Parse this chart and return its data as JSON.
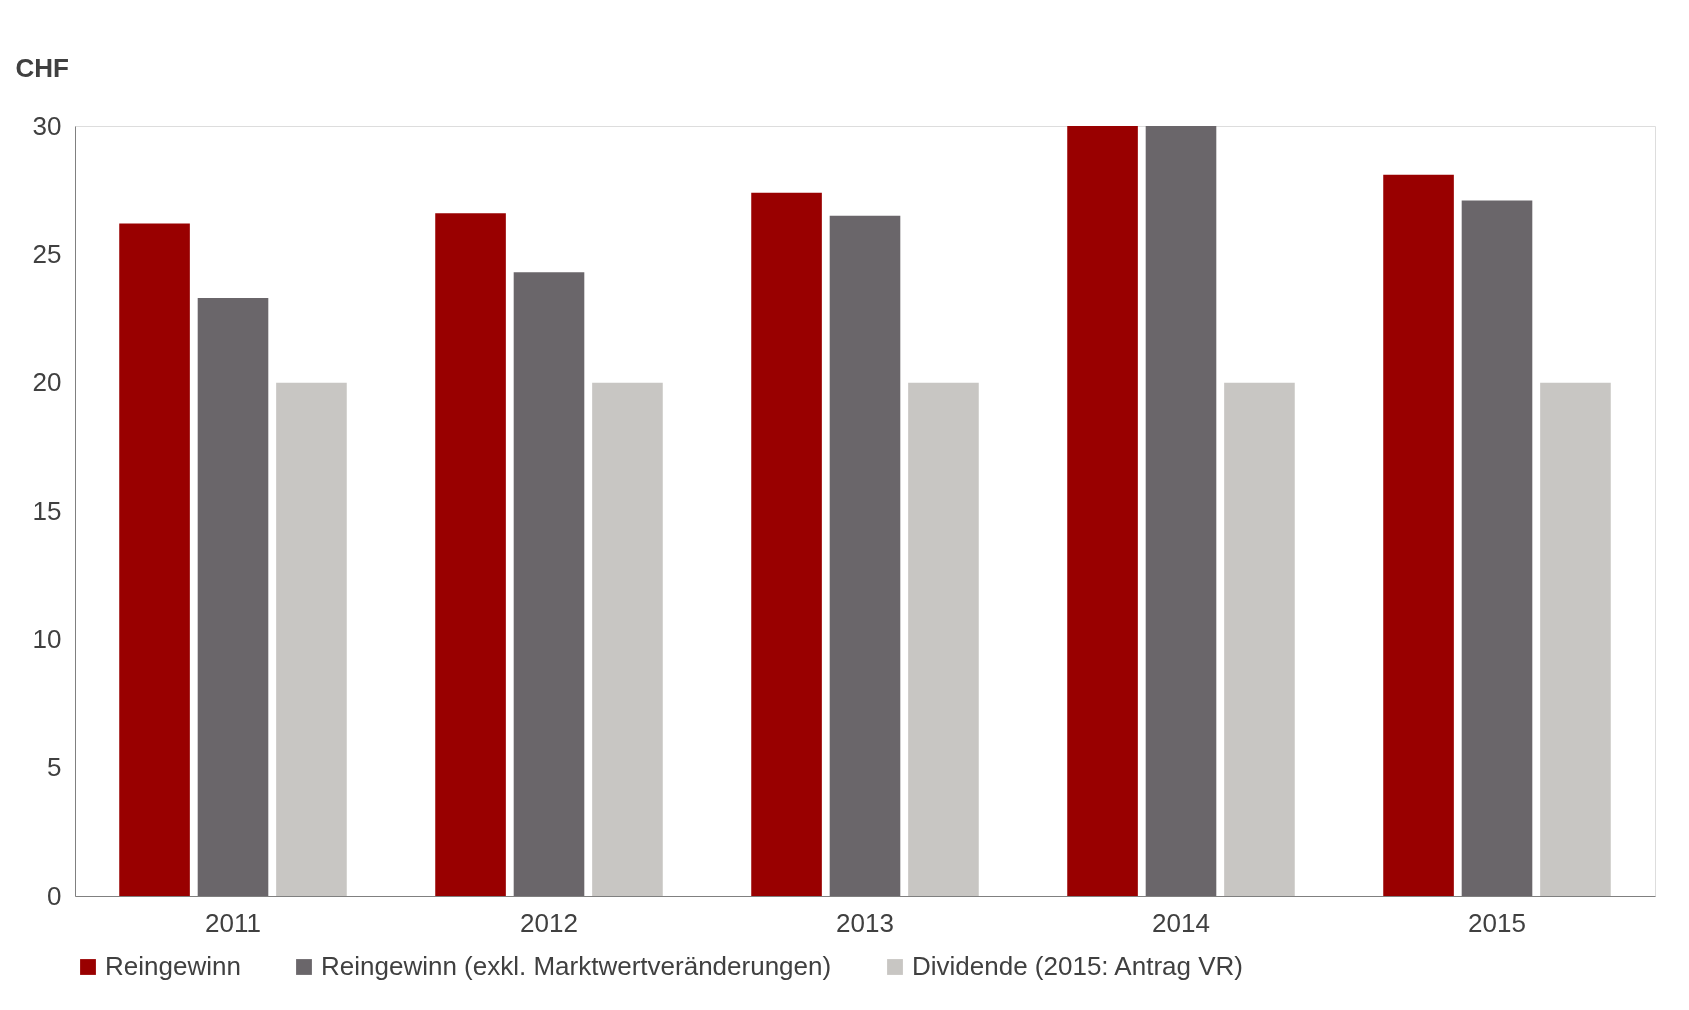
{
  "chart_data": {
    "type": "bar",
    "ylabel": "CHF",
    "categories": [
      "2011",
      "2012",
      "2013",
      "2014",
      "2015"
    ],
    "series": [
      {
        "name": "Reingewinn",
        "color": "#990000",
        "values": [
          26.2,
          26.6,
          27.4,
          30.0,
          28.1
        ]
      },
      {
        "name": "Reingewinn (exkl. Marktwertveränderungen)",
        "color": "#6a666a",
        "values": [
          23.3,
          24.3,
          26.5,
          30.0,
          27.1
        ]
      },
      {
        "name": "Dividende (2015: Antrag VR)",
        "color": "#c8c6c3",
        "values": [
          20,
          20,
          20,
          20,
          20
        ]
      }
    ],
    "ylim": [
      0,
      30
    ],
    "yticks": [
      0,
      5,
      10,
      15,
      20,
      25,
      30
    ],
    "grid": false,
    "legend": "bottom"
  }
}
